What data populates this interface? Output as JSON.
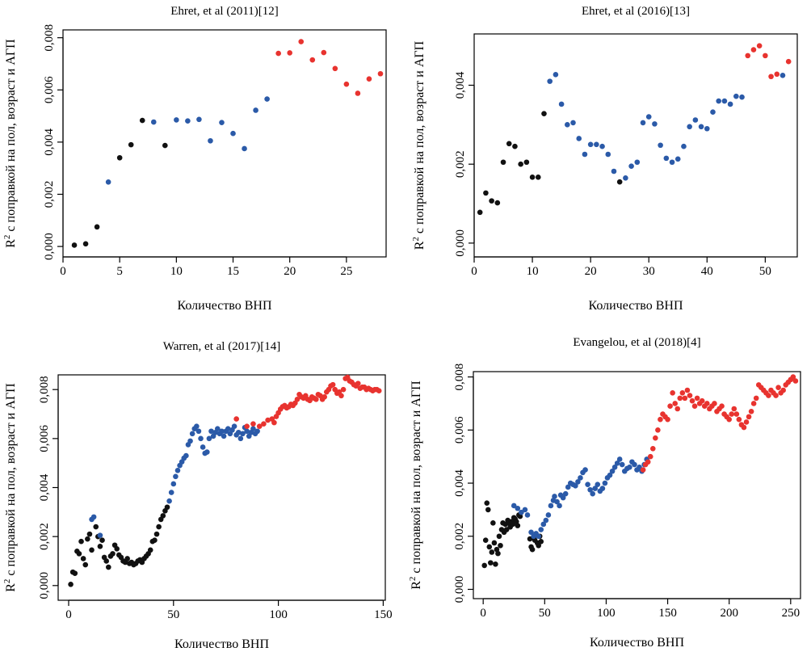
{
  "colors": {
    "black": "#111111",
    "blue": "#2b5aa8",
    "red": "#e8332f"
  },
  "ylabel_parts": {
    "prefix": "R",
    "superscript": "2",
    "rest": " с поправкой на пол, возраст и АГП"
  },
  "chart_data": [
    {
      "type": "scatter",
      "title": "Ehret, et al (2011)[12]",
      "xlabel": "Количество ВНП",
      "ylabel": "R2 с поправкой на пол, возраст и АГП",
      "xlim": [
        0,
        28.5
      ],
      "ylim": [
        -0.0004,
        0.0083
      ],
      "xticks": [
        0,
        5,
        10,
        15,
        20,
        25
      ],
      "yticks": [
        0.0,
        0.002,
        0.004,
        0.006,
        0.008
      ],
      "ytick_labels": [
        "0,000",
        "0,002",
        "0,004",
        "0,006",
        "0,008"
      ],
      "grid": false,
      "series": [
        {
          "color_key": "black",
          "x": [
            1,
            2,
            3,
            5,
            6,
            7,
            9
          ],
          "y": [
            5e-05,
            0.0001,
            0.00075,
            0.0034,
            0.0039,
            0.00483,
            0.00387
          ]
        },
        {
          "color_key": "blue",
          "x": [
            4,
            8,
            10,
            11,
            12,
            13,
            14,
            15,
            16,
            17,
            18
          ],
          "y": [
            0.00247,
            0.00477,
            0.00485,
            0.00481,
            0.00487,
            0.00405,
            0.00475,
            0.00433,
            0.00375,
            0.00522,
            0.00565
          ]
        },
        {
          "color_key": "red",
          "x": [
            19,
            20,
            21,
            22,
            23,
            24,
            25,
            26,
            27,
            28
          ],
          "y": [
            0.0074,
            0.00742,
            0.00785,
            0.00715,
            0.00743,
            0.00682,
            0.00622,
            0.00587,
            0.00642,
            0.00662
          ]
        }
      ]
    },
    {
      "type": "scatter",
      "title": "Ehret, et al (2016)[13]",
      "xlabel": "Количество ВНП",
      "ylabel": "R2 с поправкой на пол, возраст и АГП",
      "xlim": [
        0,
        55.5
      ],
      "ylim": [
        -0.00035,
        0.0053
      ],
      "xticks": [
        0,
        10,
        20,
        30,
        40,
        50
      ],
      "yticks": [
        0.0,
        0.002,
        0.004
      ],
      "ytick_labels": [
        "0,000",
        "0,002",
        "0,004"
      ],
      "grid": false,
      "series": [
        {
          "color_key": "black",
          "x": [
            1,
            2,
            3,
            4,
            5,
            6,
            7,
            8,
            9,
            10,
            11,
            12,
            25
          ],
          "y": [
            0.00078,
            0.00127,
            0.00107,
            0.00102,
            0.00205,
            0.00252,
            0.00245,
            0.002,
            0.00205,
            0.00167,
            0.00167,
            0.00328,
            0.00155
          ]
        },
        {
          "color_key": "blue",
          "x": [
            13,
            14,
            15,
            16,
            17,
            18,
            19,
            20,
            21,
            22,
            23,
            24,
            26,
            27,
            28,
            29,
            30,
            31,
            32,
            33,
            34,
            35,
            36,
            37,
            38,
            39,
            40,
            41,
            42,
            43,
            44,
            45,
            46,
            53
          ],
          "y": [
            0.0041,
            0.00427,
            0.00352,
            0.003,
            0.00305,
            0.00265,
            0.00225,
            0.0025,
            0.0025,
            0.00245,
            0.00225,
            0.00182,
            0.00165,
            0.00195,
            0.00205,
            0.00305,
            0.0032,
            0.00302,
            0.00248,
            0.00215,
            0.00205,
            0.00213,
            0.00245,
            0.00295,
            0.00312,
            0.00295,
            0.0029,
            0.00332,
            0.0036,
            0.0036,
            0.00352,
            0.00372,
            0.0037,
            0.00425
          ]
        },
        {
          "color_key": "red",
          "x": [
            47,
            48,
            49,
            50,
            51,
            52,
            54
          ],
          "y": [
            0.00475,
            0.0049,
            0.005,
            0.00475,
            0.00422,
            0.00428,
            0.0046
          ]
        }
      ]
    },
    {
      "type": "scatter",
      "title": "Warren, et al (2017)[14]",
      "xlabel": "Количество ВНП",
      "ylabel": "R2 с поправкой на пол, возраст и АГП",
      "xlim": [
        -5,
        151
      ],
      "ylim": [
        -0.0006,
        0.0086
      ],
      "xticks": [
        0,
        50,
        100,
        150
      ],
      "yticks": [
        0.0,
        0.002,
        0.004,
        0.006,
        0.008
      ],
      "ytick_labels": [
        "0,000",
        "0,002",
        "0,004",
        "0,006",
        "0,008"
      ],
      "grid": false,
      "series": [
        {
          "color_key": "black",
          "x": [
            1,
            2,
            3,
            4,
            5,
            6,
            7,
            8,
            9,
            10,
            11,
            13,
            14,
            15,
            16,
            17,
            18,
            19,
            20,
            21,
            22,
            23,
            24,
            25,
            26,
            27,
            28,
            29,
            30,
            31,
            32,
            33,
            34,
            35,
            36,
            37,
            38,
            39,
            40,
            41,
            42,
            43,
            44,
            45,
            46,
            47
          ],
          "y": [
            5e-05,
            0.00055,
            0.0005,
            0.0014,
            0.0013,
            0.0018,
            0.0011,
            0.00085,
            0.0019,
            0.0021,
            0.00145,
            0.0024,
            0.002,
            0.0016,
            0.00185,
            0.00115,
            0.001,
            0.00075,
            0.0012,
            0.0013,
            0.00165,
            0.0015,
            0.00125,
            0.00115,
            0.001,
            0.00095,
            0.0011,
            0.0009,
            0.00095,
            0.00085,
            0.0009,
            0.001,
            0.00105,
            0.00095,
            0.0011,
            0.0012,
            0.0013,
            0.00145,
            0.0018,
            0.00185,
            0.0021,
            0.0024,
            0.0027,
            0.00285,
            0.00305,
            0.0032
          ]
        },
        {
          "color_key": "blue",
          "x": [
            11,
            12,
            15,
            48,
            49,
            50,
            51,
            52,
            53,
            54,
            55,
            56,
            57,
            58,
            59,
            60,
            61,
            62,
            63,
            64,
            65,
            66,
            67,
            68,
            69,
            70,
            71,
            72,
            73,
            74,
            75,
            76,
            77,
            78,
            79,
            80,
            81,
            82,
            83,
            84,
            85,
            86,
            87,
            88,
            89,
            90
          ],
          "y": [
            0.0027,
            0.0028,
            0.00205,
            0.00345,
            0.0038,
            0.00415,
            0.00445,
            0.0047,
            0.0049,
            0.00505,
            0.0052,
            0.0053,
            0.00575,
            0.0059,
            0.0062,
            0.0064,
            0.0065,
            0.0063,
            0.006,
            0.00565,
            0.0054,
            0.00545,
            0.006,
            0.0063,
            0.0061,
            0.00625,
            0.0064,
            0.0062,
            0.0063,
            0.0061,
            0.0063,
            0.0064,
            0.0062,
            0.00635,
            0.0065,
            0.00615,
            0.00625,
            0.006,
            0.0062,
            0.00645,
            0.0063,
            0.0061,
            0.00625,
            0.0064,
            0.0062,
            0.0063
          ]
        },
        {
          "color_key": "red",
          "x": [
            80,
            85,
            88,
            91,
            93,
            95,
            97,
            98,
            99,
            100,
            101,
            102,
            103,
            104,
            105,
            106,
            107,
            108,
            109,
            110,
            111,
            112,
            113,
            114,
            115,
            116,
            117,
            118,
            119,
            120,
            121,
            122,
            123,
            124,
            125,
            126,
            127,
            128,
            129,
            130,
            131,
            132,
            133,
            134,
            135,
            136,
            137,
            138,
            139,
            140,
            141,
            142,
            143,
            144,
            145,
            146,
            147,
            148
          ],
          "y": [
            0.0068,
            0.0065,
            0.0066,
            0.0065,
            0.0066,
            0.00675,
            0.0068,
            0.00665,
            0.0069,
            0.00705,
            0.0072,
            0.0073,
            0.00735,
            0.00725,
            0.0073,
            0.0074,
            0.00735,
            0.00745,
            0.0076,
            0.0078,
            0.0077,
            0.00765,
            0.00775,
            0.0076,
            0.00755,
            0.0077,
            0.00765,
            0.0076,
            0.0078,
            0.00775,
            0.0076,
            0.0077,
            0.0079,
            0.008,
            0.00815,
            0.0082,
            0.008,
            0.00785,
            0.0079,
            0.00775,
            0.008,
            0.00845,
            0.0085,
            0.00835,
            0.0083,
            0.0082,
            0.00815,
            0.00825,
            0.00805,
            0.0081,
            0.0081,
            0.008,
            0.00805,
            0.008,
            0.00795,
            0.008,
            0.008,
            0.00795
          ]
        }
      ]
    },
    {
      "type": "scatter",
      "title": "Evangelou, et al (2018)[4]",
      "xlabel": "Количество ВНП",
      "ylabel": "R2 с поправкой на пол, возраст и АГП",
      "xlim": [
        -8,
        258
      ],
      "ylim": [
        -0.00035,
        0.0082
      ],
      "xticks": [
        0,
        50,
        100,
        150,
        200,
        250
      ],
      "yticks": [
        0.0,
        0.002,
        0.004,
        0.006,
        0.008
      ],
      "ytick_labels": [
        "0,000",
        "0,002",
        "0,004",
        "0,006",
        "0,008"
      ],
      "grid": false,
      "series": [
        {
          "color_key": "black",
          "x": [
            1,
            2,
            3,
            4,
            5,
            6,
            7,
            8,
            9,
            10,
            11,
            12,
            13,
            14,
            15,
            16,
            17,
            18,
            19,
            20,
            21,
            22,
            23,
            24,
            25,
            26,
            27,
            28,
            29,
            30,
            38,
            39,
            40,
            41,
            42,
            43,
            44,
            45,
            46,
            47
          ],
          "y": [
            0.0009,
            0.00185,
            0.00325,
            0.003,
            0.0016,
            0.001,
            0.0014,
            0.0025,
            0.00175,
            0.00095,
            0.0015,
            0.00135,
            0.002,
            0.00165,
            0.00225,
            0.0025,
            0.00215,
            0.00245,
            0.00225,
            0.0026,
            0.0025,
            0.00235,
            0.00255,
            0.00245,
            0.0027,
            0.00265,
            0.00255,
            0.0024,
            0.0028,
            0.00275,
            0.0019,
            0.0016,
            0.0015,
            0.00195,
            0.00185,
            0.00205,
            0.00175,
            0.00165,
            0.002,
            0.0018
          ]
        },
        {
          "color_key": "blue",
          "x": [
            25,
            28,
            31,
            34,
            36,
            39,
            41,
            43,
            45,
            47,
            49,
            51,
            53,
            55,
            57,
            58,
            60,
            62,
            63,
            65,
            67,
            69,
            71,
            73,
            75,
            77,
            79,
            81,
            83,
            85,
            87,
            89,
            91,
            93,
            95,
            97,
            99,
            101,
            103,
            105,
            107,
            109,
            111,
            113,
            115,
            117,
            119,
            121,
            123,
            125,
            127,
            129,
            131,
            133
          ],
          "y": [
            0.00315,
            0.00305,
            0.0029,
            0.003,
            0.0028,
            0.00215,
            0.002,
            0.0021,
            0.002,
            0.00225,
            0.00245,
            0.0026,
            0.0028,
            0.00315,
            0.00335,
            0.0035,
            0.0033,
            0.00315,
            0.00355,
            0.00345,
            0.0036,
            0.00385,
            0.004,
            0.00395,
            0.0039,
            0.00405,
            0.0042,
            0.0044,
            0.0045,
            0.00395,
            0.00375,
            0.0036,
            0.0038,
            0.00395,
            0.0037,
            0.0038,
            0.004,
            0.0042,
            0.0043,
            0.00445,
            0.0046,
            0.00475,
            0.0049,
            0.0047,
            0.00445,
            0.00455,
            0.0046,
            0.0048,
            0.0047,
            0.0045,
            0.0046,
            0.00445,
            0.0047,
            0.0049
          ]
        },
        {
          "color_key": "red",
          "x": [
            130,
            132,
            134,
            136,
            138,
            140,
            142,
            144,
            146,
            148,
            150,
            152,
            154,
            156,
            158,
            160,
            162,
            164,
            166,
            168,
            170,
            172,
            174,
            176,
            178,
            180,
            182,
            184,
            186,
            188,
            190,
            192,
            194,
            196,
            198,
            200,
            202,
            204,
            206,
            208,
            210,
            212,
            214,
            216,
            218,
            220,
            222,
            224,
            226,
            228,
            230,
            232,
            234,
            236,
            238,
            240,
            242,
            244,
            246,
            248,
            250,
            252,
            254
          ],
          "y": [
            0.0045,
            0.0047,
            0.0048,
            0.005,
            0.0053,
            0.0057,
            0.006,
            0.0064,
            0.0066,
            0.0065,
            0.0064,
            0.0069,
            0.0074,
            0.007,
            0.0068,
            0.0072,
            0.0074,
            0.0072,
            0.0075,
            0.0073,
            0.0071,
            0.0069,
            0.0072,
            0.007,
            0.0071,
            0.0069,
            0.007,
            0.0068,
            0.0069,
            0.007,
            0.0067,
            0.0068,
            0.0069,
            0.0066,
            0.0065,
            0.0064,
            0.0066,
            0.0068,
            0.0066,
            0.0064,
            0.0062,
            0.0061,
            0.0063,
            0.0065,
            0.0067,
            0.007,
            0.0072,
            0.0077,
            0.0076,
            0.0075,
            0.0074,
            0.0073,
            0.0075,
            0.0074,
            0.0073,
            0.0076,
            0.0074,
            0.0075,
            0.0077,
            0.0078,
            0.0079,
            0.008,
            0.00785
          ]
        }
      ]
    }
  ]
}
